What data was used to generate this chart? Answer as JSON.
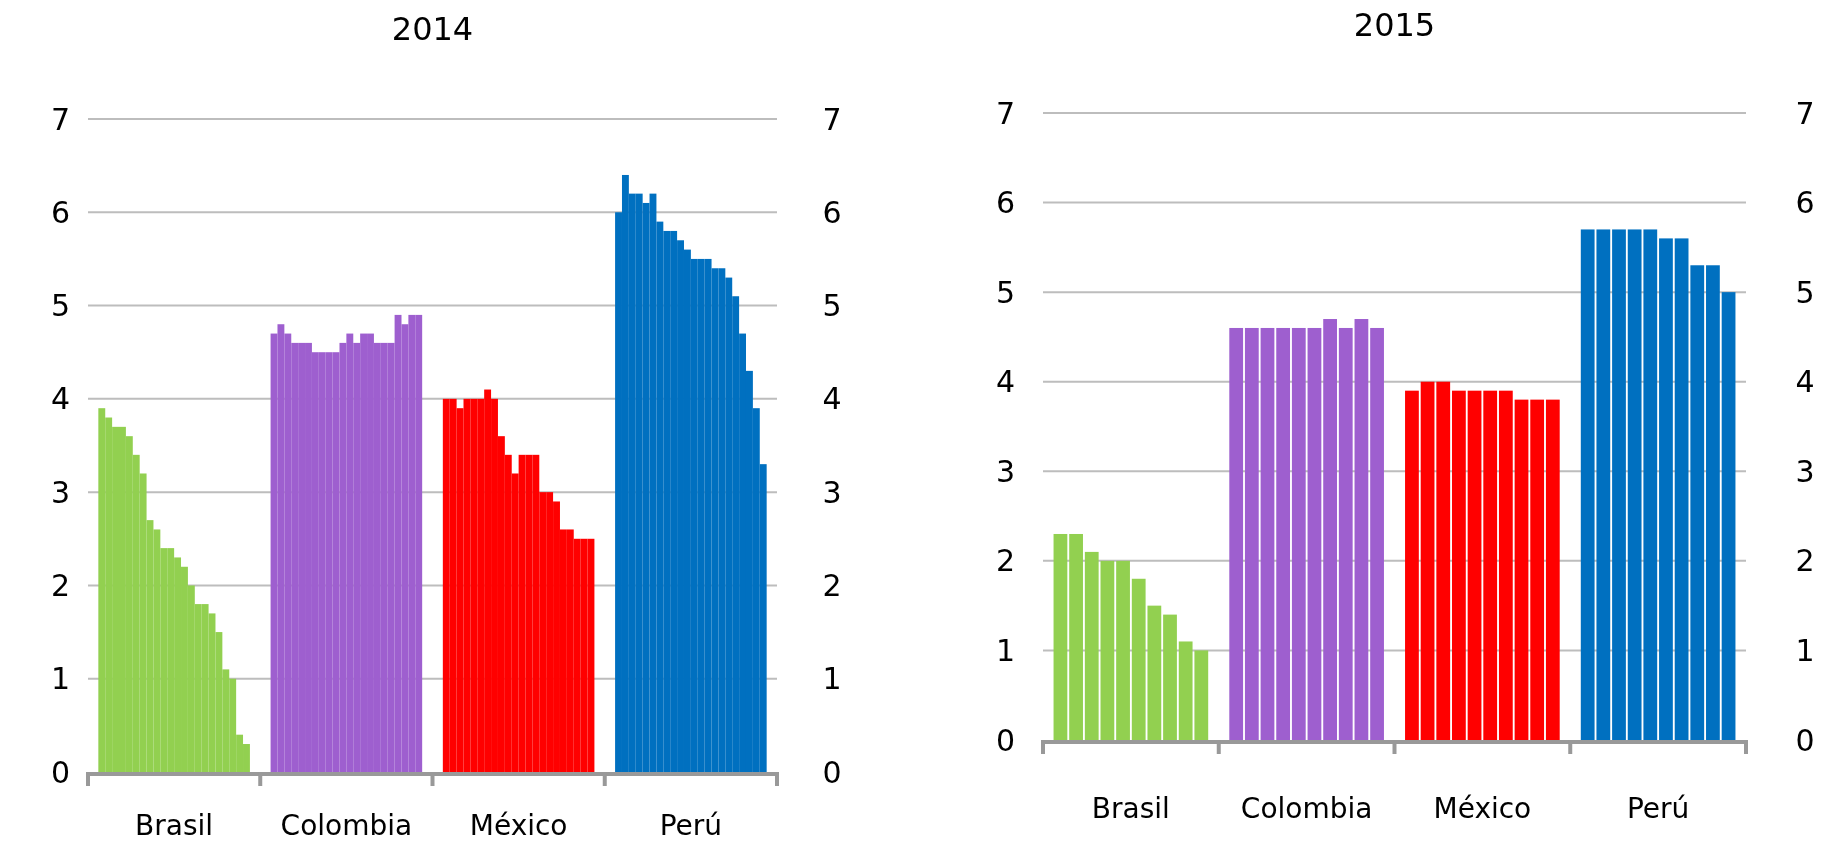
{
  "chart_data": [
    {
      "type": "bar",
      "title": "2014",
      "categories": [
        "Brasil",
        "Colombia",
        "México",
        "Perú"
      ],
      "ylim": [
        0,
        7
      ],
      "yticks": [
        0,
        1,
        2,
        3,
        4,
        5,
        6,
        7
      ],
      "y2lim": [
        0,
        7
      ],
      "y2ticks": [
        0,
        1,
        2,
        3,
        4,
        5,
        6,
        7
      ],
      "grid": "y",
      "series": [
        {
          "values": [
            3.9,
            4.7,
            4.0,
            6.0
          ],
          "colors": [
            "#92d050",
            "#9e5fcf",
            "#ff0000",
            "#0070c0"
          ]
        },
        {
          "values": [
            3.8,
            4.8,
            4.0,
            6.4
          ],
          "colors": [
            "#92d050",
            "#9e5fcf",
            "#ff0000",
            "#0070c0"
          ]
        },
        {
          "values": [
            3.7,
            4.7,
            3.9,
            6.2
          ],
          "colors": [
            "#92d050",
            "#9e5fcf",
            "#ff0000",
            "#0070c0"
          ]
        },
        {
          "values": [
            3.7,
            4.6,
            4.0,
            6.2
          ],
          "colors": [
            "#92d050",
            "#9e5fcf",
            "#ff0000",
            "#0070c0"
          ]
        },
        {
          "values": [
            3.6,
            4.6,
            4.0,
            6.1
          ],
          "colors": [
            "#92d050",
            "#9e5fcf",
            "#ff0000",
            "#0070c0"
          ]
        },
        {
          "values": [
            3.4,
            4.6,
            4.0,
            6.2
          ],
          "colors": [
            "#92d050",
            "#9e5fcf",
            "#ff0000",
            "#0070c0"
          ]
        },
        {
          "values": [
            3.2,
            4.5,
            4.1,
            5.9
          ],
          "colors": [
            "#92d050",
            "#9e5fcf",
            "#ff0000",
            "#0070c0"
          ]
        },
        {
          "values": [
            2.7,
            4.5,
            4.0,
            5.8
          ],
          "colors": [
            "#92d050",
            "#9e5fcf",
            "#ff0000",
            "#0070c0"
          ]
        },
        {
          "values": [
            2.6,
            4.5,
            3.6,
            5.8
          ],
          "colors": [
            "#92d050",
            "#9e5fcf",
            "#ff0000",
            "#0070c0"
          ]
        },
        {
          "values": [
            2.4,
            4.5,
            3.4,
            5.7
          ],
          "colors": [
            "#92d050",
            "#9e5fcf",
            "#ff0000",
            "#0070c0"
          ]
        },
        {
          "values": [
            2.4,
            4.6,
            3.2,
            5.6
          ],
          "colors": [
            "#92d050",
            "#9e5fcf",
            "#ff0000",
            "#0070c0"
          ]
        },
        {
          "values": [
            2.3,
            4.7,
            3.4,
            5.5
          ],
          "colors": [
            "#92d050",
            "#9e5fcf",
            "#ff0000",
            "#0070c0"
          ]
        },
        {
          "values": [
            2.2,
            4.6,
            3.4,
            5.5
          ],
          "colors": [
            "#92d050",
            "#9e5fcf",
            "#ff0000",
            "#0070c0"
          ]
        },
        {
          "values": [
            2.0,
            4.7,
            3.4,
            5.5
          ],
          "colors": [
            "#92d050",
            "#9e5fcf",
            "#ff0000",
            "#0070c0"
          ]
        },
        {
          "values": [
            1.8,
            4.7,
            3.0,
            5.4
          ],
          "colors": [
            "#92d050",
            "#9e5fcf",
            "#ff0000",
            "#0070c0"
          ]
        },
        {
          "values": [
            1.8,
            4.6,
            3.0,
            5.4
          ],
          "colors": [
            "#92d050",
            "#9e5fcf",
            "#ff0000",
            "#0070c0"
          ]
        },
        {
          "values": [
            1.7,
            4.6,
            2.9,
            5.3
          ],
          "colors": [
            "#92d050",
            "#9e5fcf",
            "#ff0000",
            "#0070c0"
          ]
        },
        {
          "values": [
            1.5,
            4.6,
            2.6,
            5.1
          ],
          "colors": [
            "#92d050",
            "#9e5fcf",
            "#ff0000",
            "#0070c0"
          ]
        },
        {
          "values": [
            1.1,
            4.9,
            2.6,
            4.7
          ],
          "colors": [
            "#92d050",
            "#9e5fcf",
            "#ff0000",
            "#0070c0"
          ]
        },
        {
          "values": [
            1.0,
            4.8,
            2.5,
            4.3
          ],
          "colors": [
            "#92d050",
            "#9e5fcf",
            "#ff0000",
            "#0070c0"
          ]
        },
        {
          "values": [
            0.4,
            4.9,
            2.5,
            3.9
          ],
          "colors": [
            "#92d050",
            "#9e5fcf",
            "#ff0000",
            "#0070c0"
          ]
        },
        {
          "values": [
            0.3,
            4.9,
            2.5,
            3.3
          ],
          "colors": [
            "#92d050",
            "#9e5fcf",
            "#ff0000",
            "#0070c0"
          ]
        }
      ]
    },
    {
      "type": "bar",
      "title": "2015",
      "categories": [
        "Brasil",
        "Colombia",
        "México",
        "Perú"
      ],
      "ylim": [
        0,
        7
      ],
      "yticks": [
        0,
        1,
        2,
        3,
        4,
        5,
        6,
        7
      ],
      "y2lim": [
        0,
        7
      ],
      "y2ticks": [
        0,
        1,
        2,
        3,
        4,
        5,
        6,
        7
      ],
      "grid": "y",
      "series": [
        {
          "values": [
            2.3,
            4.6,
            3.9,
            5.7
          ],
          "colors": [
            "#92d050",
            "#9e5fcf",
            "#ff0000",
            "#0070c0"
          ]
        },
        {
          "values": [
            2.3,
            4.6,
            4.0,
            5.7
          ],
          "colors": [
            "#92d050",
            "#9e5fcf",
            "#ff0000",
            "#0070c0"
          ]
        },
        {
          "values": [
            2.1,
            4.6,
            4.0,
            5.7
          ],
          "colors": [
            "#92d050",
            "#9e5fcf",
            "#ff0000",
            "#0070c0"
          ]
        },
        {
          "values": [
            2.0,
            4.6,
            3.9,
            5.7
          ],
          "colors": [
            "#92d050",
            "#9e5fcf",
            "#ff0000",
            "#0070c0"
          ]
        },
        {
          "values": [
            2.0,
            4.6,
            3.9,
            5.7
          ],
          "colors": [
            "#92d050",
            "#9e5fcf",
            "#ff0000",
            "#0070c0"
          ]
        },
        {
          "values": [
            1.8,
            4.6,
            3.9,
            5.6
          ],
          "colors": [
            "#92d050",
            "#9e5fcf",
            "#ff0000",
            "#0070c0"
          ]
        },
        {
          "values": [
            1.5,
            4.7,
            3.9,
            5.6
          ],
          "colors": [
            "#92d050",
            "#9e5fcf",
            "#ff0000",
            "#0070c0"
          ]
        },
        {
          "values": [
            1.4,
            4.6,
            3.8,
            5.3
          ],
          "colors": [
            "#92d050",
            "#9e5fcf",
            "#ff0000",
            "#0070c0"
          ]
        },
        {
          "values": [
            1.1,
            4.7,
            3.8,
            5.3
          ],
          "colors": [
            "#92d050",
            "#9e5fcf",
            "#ff0000",
            "#0070c0"
          ]
        },
        {
          "values": [
            1.0,
            4.6,
            3.8,
            5.0
          ],
          "colors": [
            "#92d050",
            "#9e5fcf",
            "#ff0000",
            "#0070c0"
          ]
        }
      ]
    }
  ]
}
